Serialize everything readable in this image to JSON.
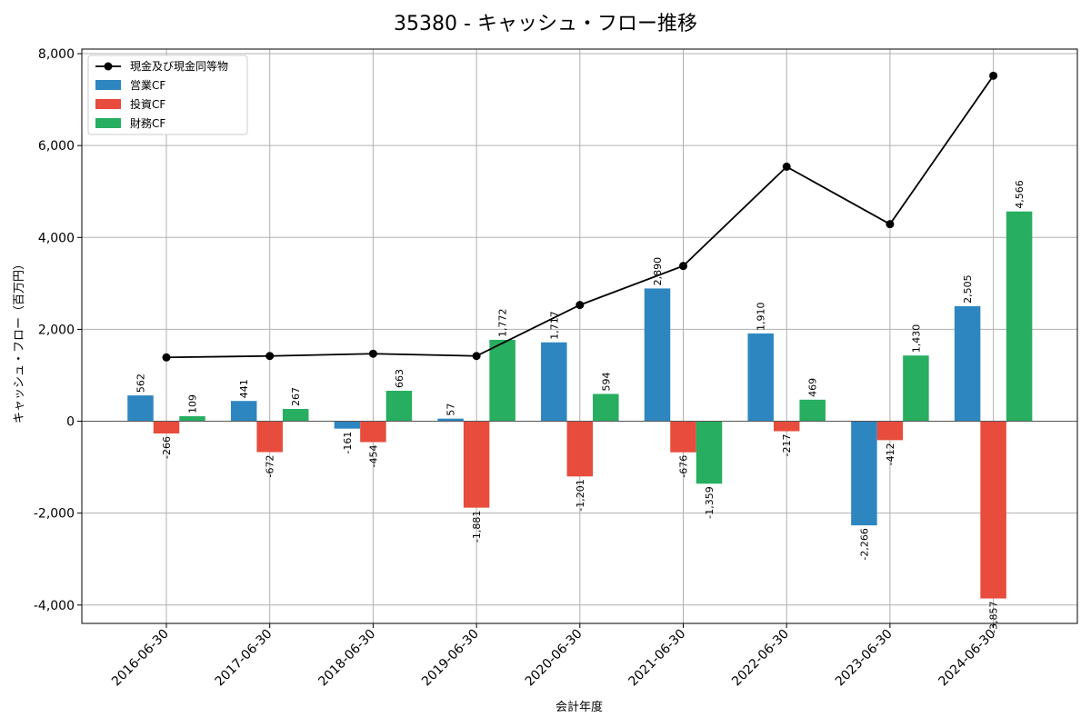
{
  "chart_data": {
    "type": "bar",
    "title": "35380 - キャッシュ・フロー推移",
    "xlabel": "会計年度",
    "ylabel": "キャッシュ・フロー（百万円）",
    "categories": [
      "2016-06-30",
      "2017-06-30",
      "2018-06-30",
      "2019-06-30",
      "2020-06-30",
      "2021-06-30",
      "2022-06-30",
      "2023-06-30",
      "2024-06-30"
    ],
    "ylim": [
      -4400,
      8100
    ],
    "yticks": [
      -4000,
      -2000,
      0,
      2000,
      4000,
      6000,
      8000
    ],
    "ytick_labels": [
      "-4,000",
      "-2,000",
      "0",
      "2,000",
      "4,000",
      "6,000",
      "8,000"
    ],
    "grid": true,
    "legend_position": "top-left",
    "series": [
      {
        "name": "営業CF",
        "kind": "bar",
        "color": "#2e86c1",
        "values": [
          562,
          441,
          -161,
          57,
          1717,
          2890,
          1910,
          -2266,
          2505
        ],
        "labels": [
          "562",
          "441",
          "-161",
          "57",
          "1,717",
          "2,890",
          "1,910",
          "-2,266",
          "2,505"
        ]
      },
      {
        "name": "投資CF",
        "kind": "bar",
        "color": "#e74c3c",
        "values": [
          -266,
          -672,
          -454,
          -1881,
          -1201,
          -676,
          -217,
          -412,
          -3857
        ],
        "labels": [
          "-266",
          "-672",
          "-454",
          "-1,881",
          "-1,201",
          "-676",
          "-217",
          "-412",
          "-3,857"
        ]
      },
      {
        "name": "財務CF",
        "kind": "bar",
        "color": "#27ae60",
        "values": [
          109,
          267,
          663,
          1772,
          594,
          -1359,
          469,
          1430,
          4566
        ],
        "labels": [
          "109",
          "267",
          "663",
          "1,772",
          "594",
          "-1,359",
          "469",
          "1,430",
          "4,566"
        ]
      }
    ],
    "line": {
      "name": "現金及び現金同等物",
      "color": "#000000",
      "values": [
        1390,
        1420,
        1470,
        1420,
        2530,
        3380,
        5540,
        4290,
        7520
      ]
    }
  }
}
